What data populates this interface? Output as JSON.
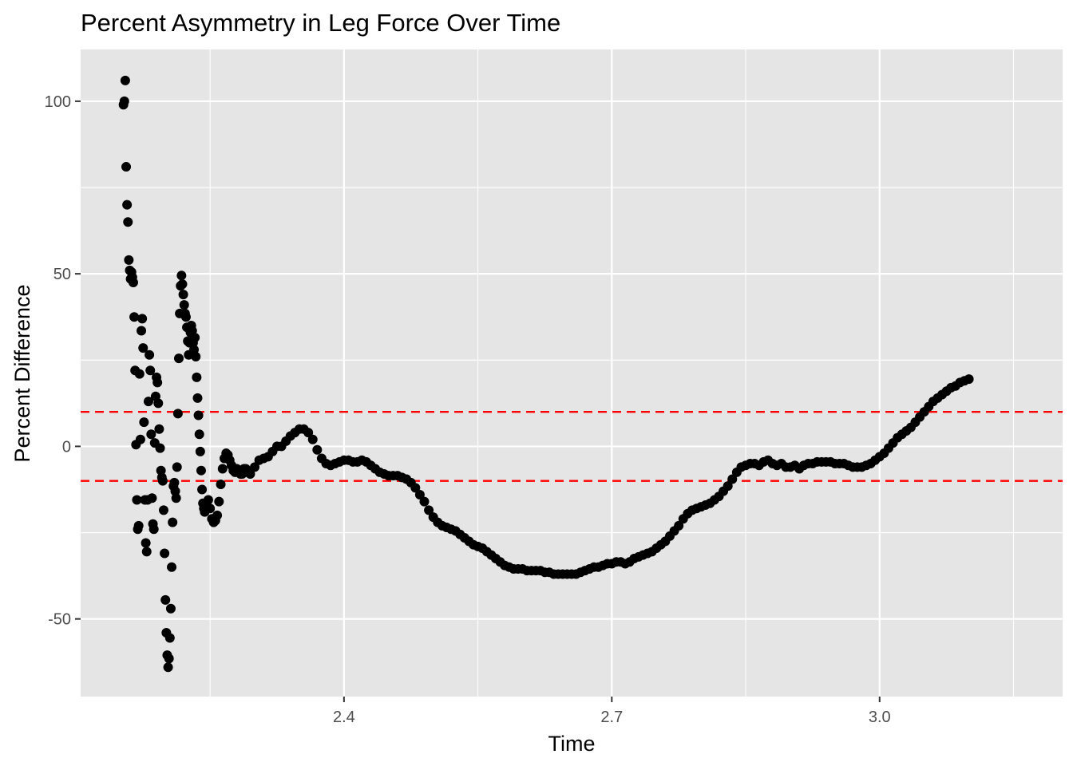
{
  "chart_data": {
    "type": "scatter",
    "title": "Percent Asymmetry in Leg Force Over Time",
    "xlabel": "Time",
    "ylabel": "Percent Difference",
    "xlim": [
      2.105,
      3.205
    ],
    "ylim": [
      -72.5,
      115
    ],
    "x_ticks": [
      {
        "value": 2.4,
        "label": "2.4"
      },
      {
        "value": 2.7,
        "label": "2.7"
      },
      {
        "value": 3.0,
        "label": "3.0"
      }
    ],
    "y_ticks": [
      {
        "value": 100,
        "label": "100"
      },
      {
        "value": 50,
        "label": "50"
      },
      {
        "value": 0,
        "label": "0"
      },
      {
        "value": -50,
        "label": "-50"
      }
    ],
    "grid": true,
    "panel_background": "#E5E5E5",
    "grid_color": "#FFFFFF",
    "point_color": "#000000",
    "reference_lines": [
      {
        "y": 10,
        "color": "#FF0000",
        "style": "dashed"
      },
      {
        "y": -10,
        "color": "#FF0000",
        "style": "dashed"
      }
    ],
    "series": [
      {
        "points": [
          [
            2.153,
            99
          ],
          [
            2.154,
            100
          ],
          [
            2.155,
            106
          ],
          [
            2.156,
            81
          ],
          [
            2.157,
            70
          ],
          [
            2.158,
            65
          ],
          [
            2.159,
            54
          ],
          [
            2.16,
            51
          ],
          [
            2.161,
            48.5
          ],
          [
            2.162,
            50.5
          ],
          [
            2.163,
            49
          ],
          [
            2.164,
            47.5
          ],
          [
            2.165,
            37.5
          ],
          [
            2.166,
            22
          ],
          [
            2.167,
            0.5
          ],
          [
            2.168,
            -15.5
          ],
          [
            2.169,
            -24
          ],
          [
            2.17,
            -23
          ],
          [
            2.171,
            21
          ],
          [
            2.172,
            2
          ],
          [
            2.173,
            33.5
          ],
          [
            2.174,
            37
          ],
          [
            2.175,
            28.5
          ],
          [
            2.176,
            7
          ],
          [
            2.177,
            -15.5
          ],
          [
            2.178,
            -28
          ],
          [
            2.179,
            -30.5
          ],
          [
            2.18,
            -15.5
          ],
          [
            2.181,
            13
          ],
          [
            2.182,
            26.5
          ],
          [
            2.183,
            22
          ],
          [
            2.184,
            3.5
          ],
          [
            2.185,
            -15
          ],
          [
            2.186,
            -22.5
          ],
          [
            2.187,
            -24
          ],
          [
            2.188,
            1
          ],
          [
            2.189,
            14.5
          ],
          [
            2.19,
            20
          ],
          [
            2.191,
            18.5
          ],
          [
            2.192,
            12.5
          ],
          [
            2.193,
            5
          ],
          [
            2.194,
            -0.5
          ],
          [
            2.195,
            -7
          ],
          [
            2.196,
            -9
          ],
          [
            2.197,
            -10
          ],
          [
            2.198,
            -18.5
          ],
          [
            2.199,
            -31
          ],
          [
            2.2,
            -44.5
          ],
          [
            2.201,
            -54
          ],
          [
            2.202,
            -60.5
          ],
          [
            2.203,
            -64
          ],
          [
            2.204,
            -61.5
          ],
          [
            2.205,
            -55.5
          ],
          [
            2.206,
            -47
          ],
          [
            2.207,
            -35
          ],
          [
            2.208,
            -22
          ],
          [
            2.209,
            -11.5
          ],
          [
            2.21,
            -10.5
          ],
          [
            2.211,
            -13
          ],
          [
            2.212,
            -15
          ],
          [
            2.213,
            -6
          ],
          [
            2.214,
            9.5
          ],
          [
            2.215,
            25.5
          ],
          [
            2.216,
            38.5
          ],
          [
            2.217,
            46.5
          ],
          [
            2.218,
            49.5
          ],
          [
            2.219,
            47
          ],
          [
            2.22,
            44
          ],
          [
            2.221,
            41
          ],
          [
            2.222,
            38.5
          ],
          [
            2.223,
            37.5
          ],
          [
            2.224,
            34.5
          ],
          [
            2.225,
            30.5
          ],
          [
            2.226,
            26.5
          ],
          [
            2.227,
            30
          ],
          [
            2.228,
            33
          ],
          [
            2.229,
            35
          ],
          [
            2.23,
            33.5
          ],
          [
            2.231,
            30
          ],
          [
            2.232,
            28
          ],
          [
            2.233,
            31.5
          ],
          [
            2.234,
            26
          ],
          [
            2.235,
            20
          ],
          [
            2.236,
            14
          ],
          [
            2.237,
            9
          ],
          [
            2.238,
            3.5
          ],
          [
            2.239,
            -1.5
          ],
          [
            2.24,
            -7
          ],
          [
            2.241,
            -12.5
          ],
          [
            2.242,
            -16.5
          ],
          [
            2.243,
            -18
          ],
          [
            2.244,
            -19
          ],
          [
            2.246,
            -16.5
          ],
          [
            2.248,
            -15.5
          ],
          [
            2.25,
            -18
          ],
          [
            2.252,
            -21
          ],
          [
            2.254,
            -22
          ],
          [
            2.256,
            -21.5
          ],
          [
            2.258,
            -20
          ],
          [
            2.26,
            -16
          ],
          [
            2.262,
            -11
          ],
          [
            2.264,
            -6.5
          ],
          [
            2.266,
            -3.5
          ],
          [
            2.268,
            -2
          ],
          [
            2.27,
            -2.5
          ],
          [
            2.272,
            -4
          ],
          [
            2.274,
            -5.5
          ],
          [
            2.276,
            -7
          ],
          [
            2.278,
            -7.5
          ],
          [
            2.28,
            -6.5
          ],
          [
            2.282,
            -7
          ],
          [
            2.284,
            -8
          ],
          [
            2.286,
            -8
          ],
          [
            2.288,
            -6.5
          ],
          [
            2.29,
            -6.5
          ],
          [
            2.292,
            -7.5
          ],
          [
            2.295,
            -8
          ],
          [
            2.3,
            -6
          ],
          [
            2.305,
            -4
          ],
          [
            2.31,
            -3.5
          ],
          [
            2.315,
            -3
          ],
          [
            2.32,
            -1.5
          ],
          [
            2.325,
            0
          ],
          [
            2.33,
            0
          ],
          [
            2.335,
            1.5
          ],
          [
            2.34,
            3
          ],
          [
            2.345,
            4
          ],
          [
            2.35,
            5
          ],
          [
            2.355,
            5
          ],
          [
            2.36,
            4
          ],
          [
            2.365,
            2
          ],
          [
            2.37,
            -1
          ],
          [
            2.375,
            -3.5
          ],
          [
            2.38,
            -5
          ],
          [
            2.385,
            -5.5
          ],
          [
            2.39,
            -5
          ],
          [
            2.395,
            -4.5
          ],
          [
            2.4,
            -4
          ],
          [
            2.405,
            -4
          ],
          [
            2.41,
            -4.5
          ],
          [
            2.415,
            -4.5
          ],
          [
            2.42,
            -4
          ],
          [
            2.425,
            -4.5
          ],
          [
            2.43,
            -5.5
          ],
          [
            2.435,
            -6.5
          ],
          [
            2.44,
            -7.5
          ],
          [
            2.445,
            -8
          ],
          [
            2.45,
            -8.5
          ],
          [
            2.455,
            -8.5
          ],
          [
            2.46,
            -8.5
          ],
          [
            2.465,
            -9
          ],
          [
            2.47,
            -9.5
          ],
          [
            2.475,
            -10.5
          ],
          [
            2.48,
            -12
          ],
          [
            2.485,
            -14
          ],
          [
            2.49,
            -16
          ],
          [
            2.495,
            -18.5
          ],
          [
            2.5,
            -20.5
          ],
          [
            2.505,
            -22
          ],
          [
            2.51,
            -23
          ],
          [
            2.515,
            -23.5
          ],
          [
            2.52,
            -24
          ],
          [
            2.525,
            -24.5
          ],
          [
            2.53,
            -25.5
          ],
          [
            2.535,
            -26.5
          ],
          [
            2.54,
            -27.5
          ],
          [
            2.545,
            -28.5
          ],
          [
            2.55,
            -29
          ],
          [
            2.555,
            -29.5
          ],
          [
            2.56,
            -30.5
          ],
          [
            2.565,
            -31.5
          ],
          [
            2.57,
            -32.5
          ],
          [
            2.575,
            -33.5
          ],
          [
            2.58,
            -34.5
          ],
          [
            2.585,
            -35
          ],
          [
            2.59,
            -35.5
          ],
          [
            2.595,
            -35.5
          ],
          [
            2.6,
            -35.5
          ],
          [
            2.605,
            -36
          ],
          [
            2.61,
            -36
          ],
          [
            2.615,
            -36
          ],
          [
            2.62,
            -36
          ],
          [
            2.625,
            -36.5
          ],
          [
            2.63,
            -36.5
          ],
          [
            2.635,
            -37
          ],
          [
            2.64,
            -37
          ],
          [
            2.645,
            -37
          ],
          [
            2.65,
            -37
          ],
          [
            2.655,
            -37
          ],
          [
            2.66,
            -37
          ],
          [
            2.665,
            -36.5
          ],
          [
            2.67,
            -36
          ],
          [
            2.675,
            -35.5
          ],
          [
            2.68,
            -35
          ],
          [
            2.685,
            -35
          ],
          [
            2.69,
            -34.5
          ],
          [
            2.695,
            -34
          ],
          [
            2.7,
            -34
          ],
          [
            2.705,
            -33.5
          ],
          [
            2.71,
            -33.5
          ],
          [
            2.715,
            -34
          ],
          [
            2.72,
            -33.5
          ],
          [
            2.725,
            -32.5
          ],
          [
            2.73,
            -32
          ],
          [
            2.735,
            -31.5
          ],
          [
            2.74,
            -31
          ],
          [
            2.745,
            -30.5
          ],
          [
            2.75,
            -29.5
          ],
          [
            2.755,
            -28.5
          ],
          [
            2.76,
            -27.5
          ],
          [
            2.765,
            -26
          ],
          [
            2.77,
            -24.5
          ],
          [
            2.775,
            -23
          ],
          [
            2.78,
            -21
          ],
          [
            2.785,
            -19.5
          ],
          [
            2.79,
            -18.5
          ],
          [
            2.795,
            -18
          ],
          [
            2.8,
            -17.5
          ],
          [
            2.805,
            -17
          ],
          [
            2.81,
            -16.5
          ],
          [
            2.815,
            -15.5
          ],
          [
            2.82,
            -14.5
          ],
          [
            2.825,
            -13
          ],
          [
            2.83,
            -11.5
          ],
          [
            2.835,
            -9.5
          ],
          [
            2.84,
            -7.5
          ],
          [
            2.845,
            -6
          ],
          [
            2.85,
            -5.5
          ],
          [
            2.855,
            -5
          ],
          [
            2.86,
            -5
          ],
          [
            2.865,
            -5.5
          ],
          [
            2.87,
            -4.5
          ],
          [
            2.875,
            -4
          ],
          [
            2.88,
            -5
          ],
          [
            2.885,
            -5.5
          ],
          [
            2.89,
            -5
          ],
          [
            2.895,
            -6
          ],
          [
            2.9,
            -6
          ],
          [
            2.905,
            -5.5
          ],
          [
            2.91,
            -6.5
          ],
          [
            2.915,
            -5.5
          ],
          [
            2.92,
            -5
          ],
          [
            2.925,
            -5
          ],
          [
            2.93,
            -4.5
          ],
          [
            2.935,
            -4.5
          ],
          [
            2.94,
            -4.5
          ],
          [
            2.945,
            -4.5
          ],
          [
            2.95,
            -5
          ],
          [
            2.955,
            -5
          ],
          [
            2.96,
            -5
          ],
          [
            2.965,
            -5.5
          ],
          [
            2.97,
            -6
          ],
          [
            2.975,
            -6
          ],
          [
            2.98,
            -6
          ],
          [
            2.985,
            -5.5
          ],
          [
            2.99,
            -5
          ],
          [
            2.995,
            -4
          ],
          [
            3.0,
            -3
          ],
          [
            3.005,
            -2
          ],
          [
            3.01,
            -0.5
          ],
          [
            3.015,
            1
          ],
          [
            3.02,
            2.5
          ],
          [
            3.025,
            3.5
          ],
          [
            3.03,
            4.5
          ],
          [
            3.035,
            5.5
          ],
          [
            3.04,
            7
          ],
          [
            3.045,
            8.5
          ],
          [
            3.05,
            10
          ],
          [
            3.055,
            11.5
          ],
          [
            3.06,
            13
          ],
          [
            3.065,
            14
          ],
          [
            3.07,
            15
          ],
          [
            3.075,
            16
          ],
          [
            3.08,
            17
          ],
          [
            3.085,
            17.5
          ],
          [
            3.09,
            18.5
          ],
          [
            3.095,
            19
          ],
          [
            3.1,
            19.5
          ]
        ]
      }
    ]
  }
}
